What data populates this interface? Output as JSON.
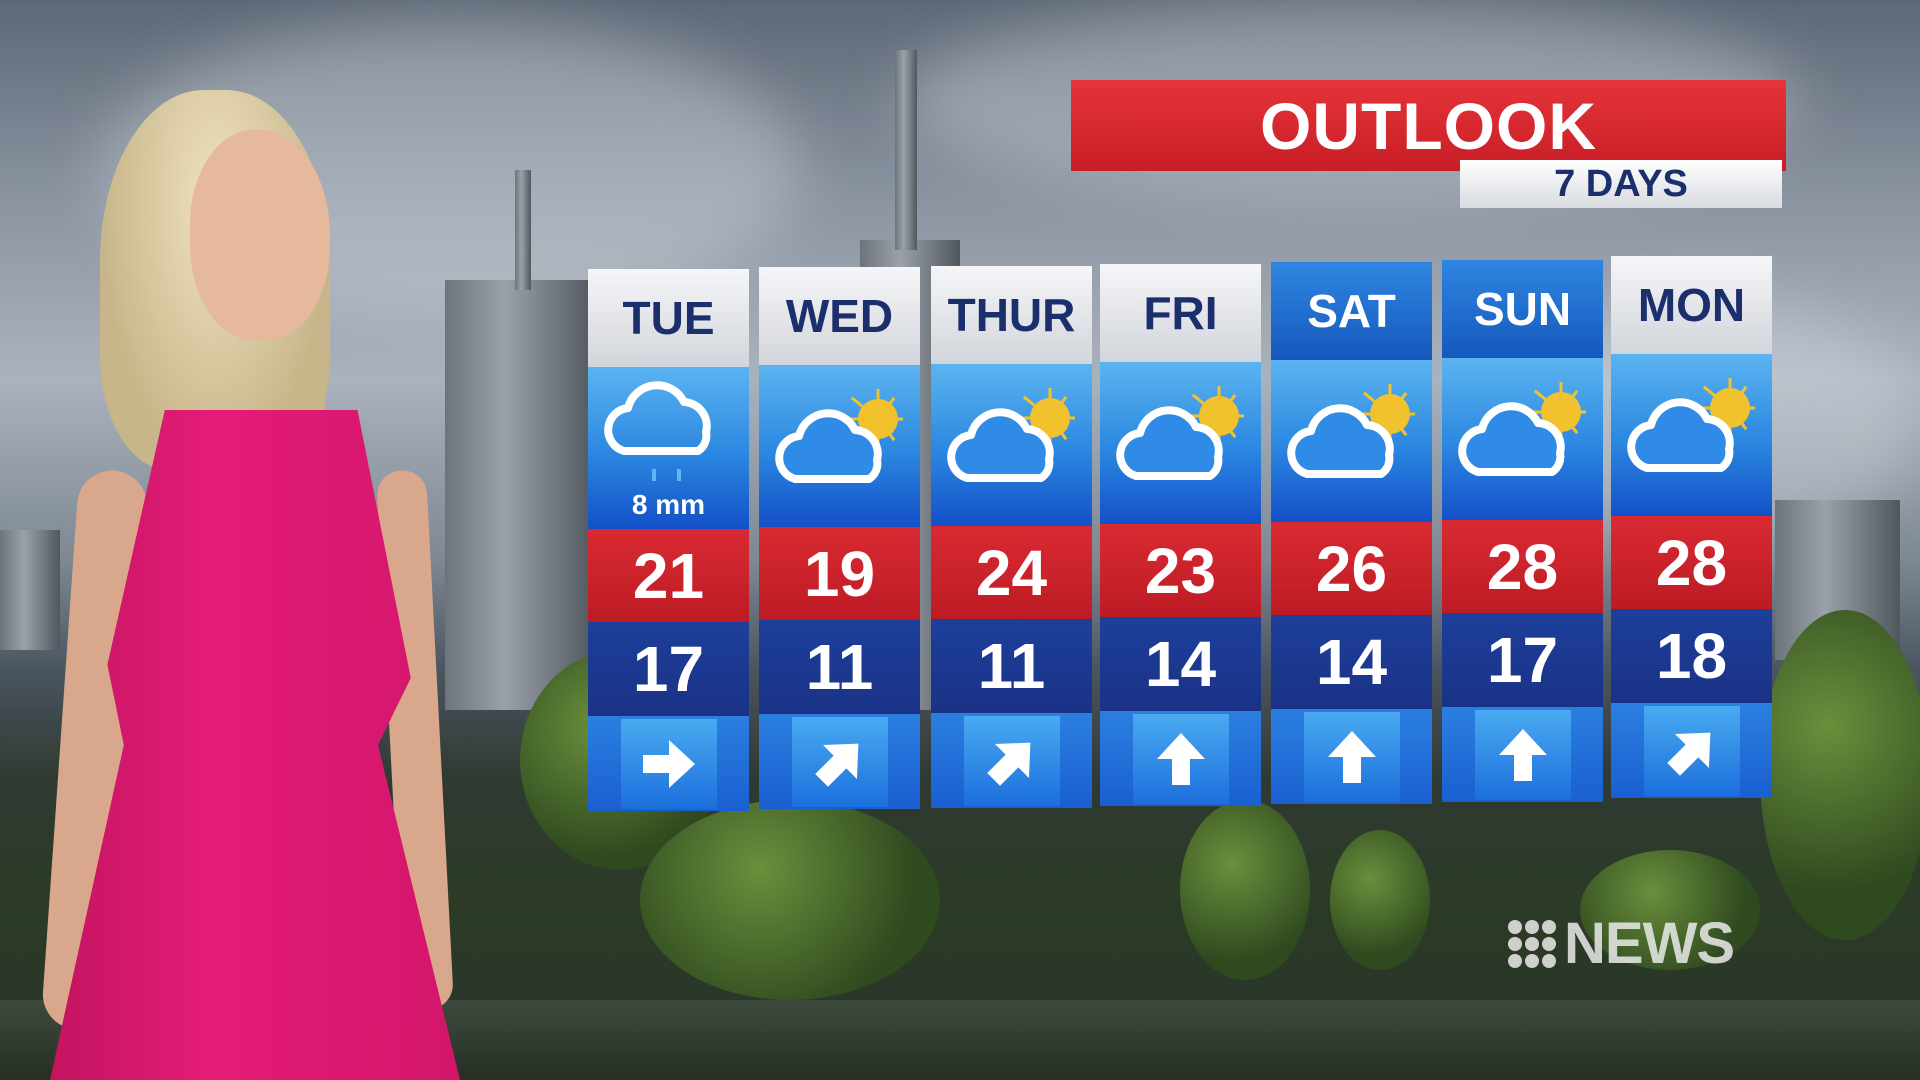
{
  "banner": {
    "title": "OUTLOOK",
    "subtitle": "7 DAYS"
  },
  "colors": {
    "banner_red": "#c81d25",
    "header_navy": "#1a2f6b",
    "max_red": "#c81d25",
    "min_blue": "#1a3286",
    "weekend_header": "#1558bd"
  },
  "forecast": [
    {
      "day": "TUE",
      "icon": "rain-cloud-icon",
      "rain": "8 mm",
      "max": "21",
      "min": "17",
      "wind_arrow": "east",
      "weekend": false
    },
    {
      "day": "WED",
      "icon": "partly-cloudy-icon",
      "max": "19",
      "min": "11",
      "wind_arrow": "north-east",
      "weekend": false
    },
    {
      "day": "THUR",
      "icon": "partly-cloudy-icon",
      "max": "24",
      "min": "11",
      "wind_arrow": "north-east",
      "weekend": false
    },
    {
      "day": "FRI",
      "icon": "partly-cloudy-icon",
      "max": "23",
      "min": "14",
      "wind_arrow": "north",
      "weekend": false
    },
    {
      "day": "SAT",
      "icon": "partly-cloudy-icon",
      "max": "26",
      "min": "14",
      "wind_arrow": "north",
      "weekend": true
    },
    {
      "day": "SUN",
      "icon": "partly-cloudy-icon",
      "max": "28",
      "min": "17",
      "wind_arrow": "north",
      "weekend": true
    },
    {
      "day": "MON",
      "icon": "partly-cloudy-icon",
      "max": "28",
      "min": "18",
      "wind_arrow": "north-east",
      "weekend": false
    }
  ],
  "logo": {
    "text": "NEWS",
    "mark": "9"
  }
}
